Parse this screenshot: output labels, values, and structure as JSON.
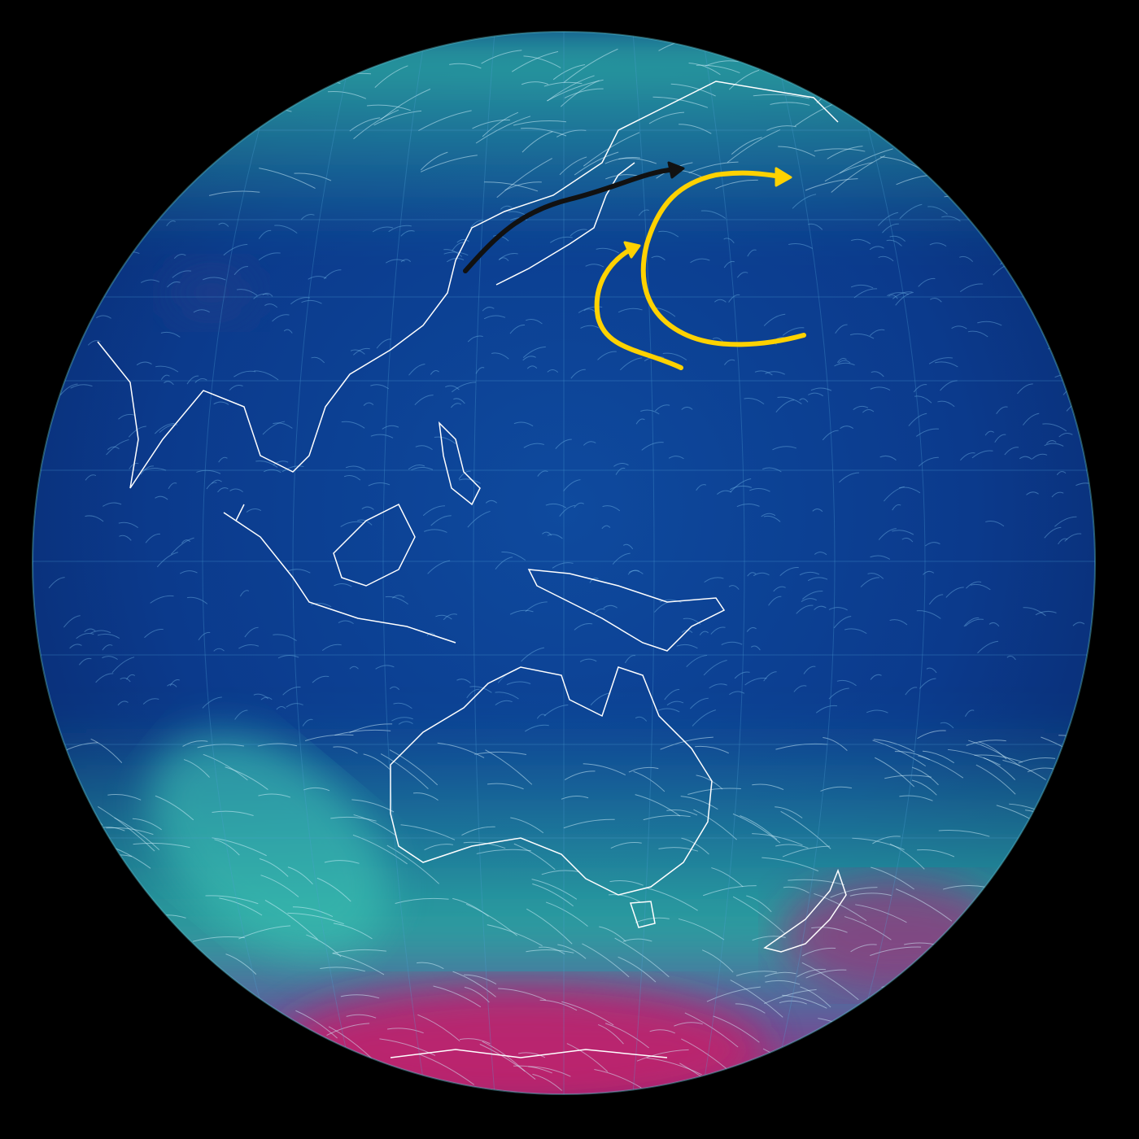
{
  "map": {
    "background_color": "#000000",
    "ocean_calm_color": "#0b3a8c",
    "ocean_mid_color": "#1d63b0",
    "jet_teal_color": "#2fb3a4",
    "strong_wind_color": "#b4246e",
    "coastline_color": "#ffffff",
    "graticule_color": "#4fa3d8"
  },
  "annotations": [
    {
      "name": "kuroshio-arrow",
      "color": "#111111"
    },
    {
      "name": "gyre-inner-arrow",
      "color": "#ffd200"
    },
    {
      "name": "gyre-outer-arrow",
      "color": "#ffd200"
    }
  ]
}
